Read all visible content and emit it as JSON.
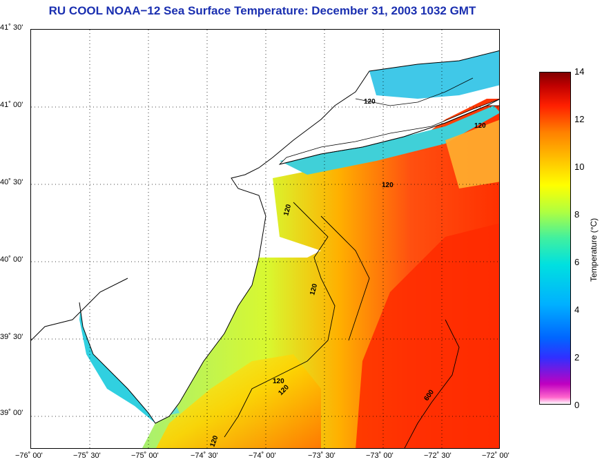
{
  "title": "RU COOL  NOAA−12  Sea Surface Temperature:  December 31, 2003 1032 GMT",
  "map": {
    "y_ticks": [
      "41˚ 30'",
      "41˚ 00'",
      "40˚ 30'",
      "40˚ 00'",
      "39˚ 30'",
      "39˚ 00'"
    ],
    "x_ticks": [
      "−76˚ 00'",
      "−75˚ 30'",
      "−75˚ 00'",
      "−74˚ 30'",
      "−74˚ 00'",
      "−73˚ 30'",
      "−73˚ 00'",
      "−72˚ 30'",
      "−72˚ 00'"
    ],
    "contour_labels": [
      "120",
      "120",
      "120",
      "120",
      "120",
      "120",
      "120",
      "120",
      "600"
    ],
    "grid": "dotted"
  },
  "colorbar": {
    "label": "Temperature (°C)",
    "ticks": [
      "14",
      "12",
      "10",
      "8",
      "6",
      "4",
      "2",
      "0"
    ],
    "min": 0,
    "max": 14,
    "colors": [
      "#ff66cc",
      "#c000c0",
      "#0066ff",
      "#00e0e0",
      "#b0ff40",
      "#ffff00",
      "#ff8000",
      "#ff2000",
      "#800000"
    ]
  }
}
